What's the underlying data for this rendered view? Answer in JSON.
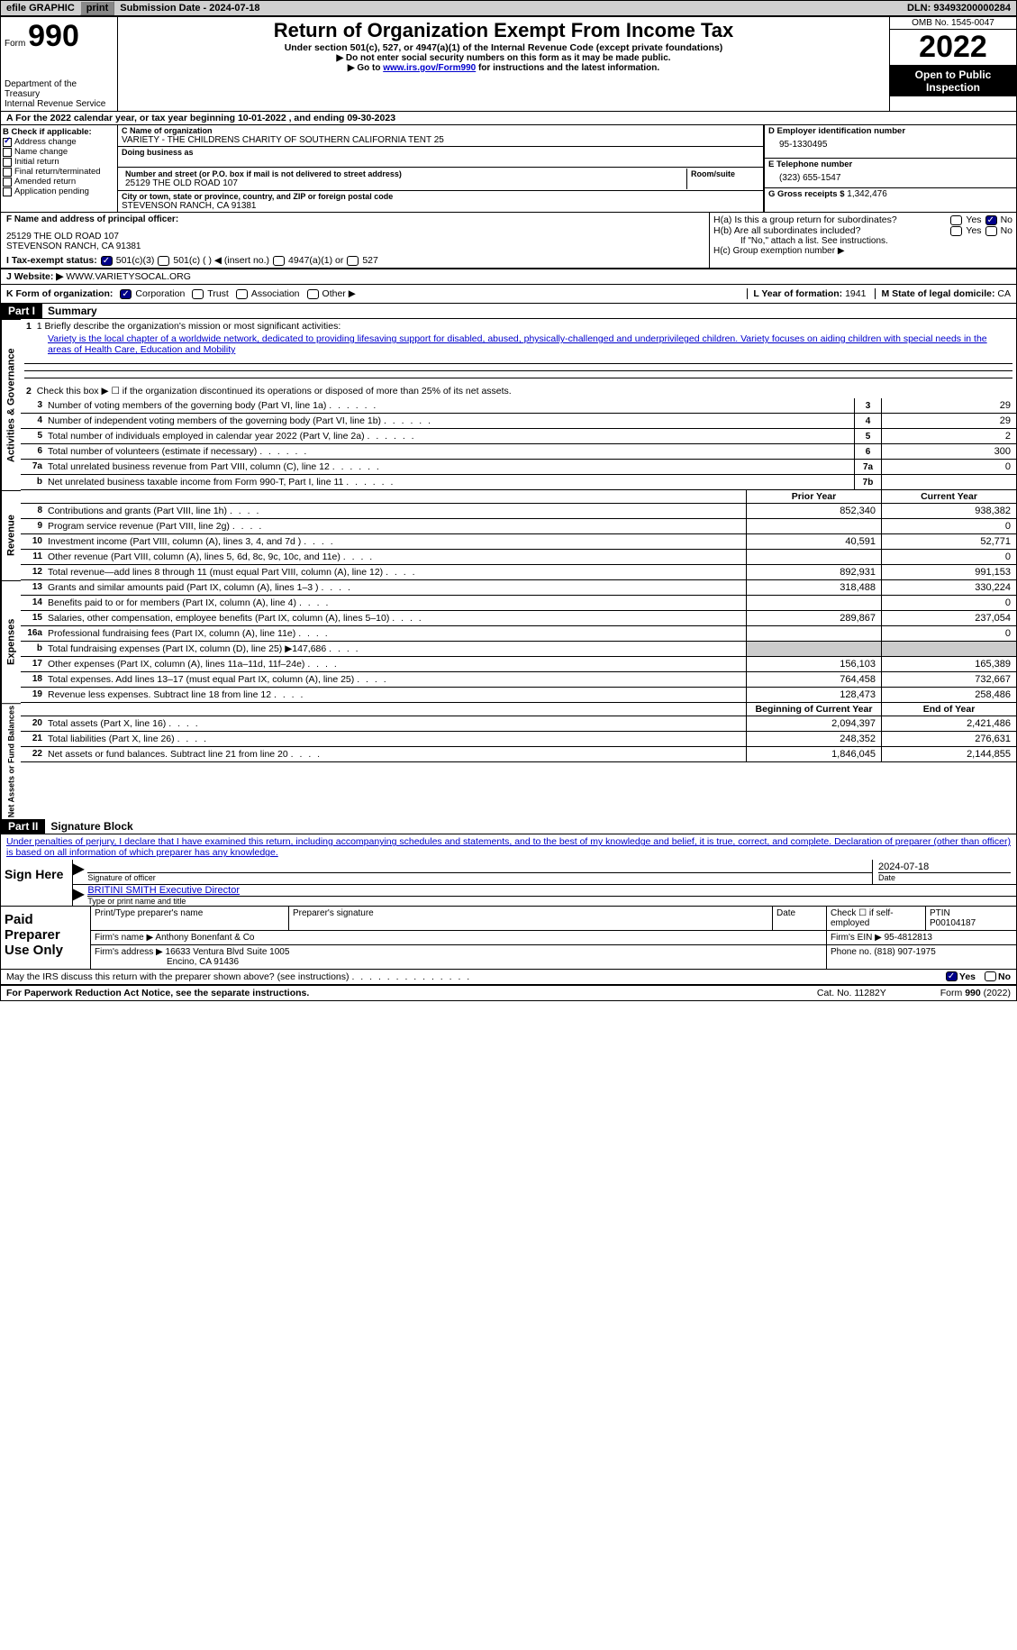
{
  "topbar": {
    "efile_label": "efile GRAPHIC",
    "print_btn": "print",
    "submission_label": "Submission Date - 2024-07-18",
    "dln_label": "DLN: 93493200000284"
  },
  "header": {
    "form_prefix": "Form",
    "form_number": "990",
    "title": "Return of Organization Exempt From Income Tax",
    "subtitle": "Under section 501(c), 527, or 4947(a)(1) of the Internal Revenue Code (except private foundations)",
    "note1": "▶ Do not enter social security numbers on this form as it may be made public.",
    "note2_pre": "▶ Go to ",
    "note2_link": "www.irs.gov/Form990",
    "note2_post": " for instructions and the latest information.",
    "dept": "Department of the Treasury",
    "irs": "Internal Revenue Service",
    "omb": "OMB No. 1545-0047",
    "year": "2022",
    "inspection": "Open to Public Inspection"
  },
  "rowA": "A For the 2022 calendar year, or tax year beginning 10-01-2022    , and ending 09-30-2023",
  "colB": {
    "header": "B Check if applicable:",
    "items": [
      "Address change",
      "Name change",
      "Initial return",
      "Final return/terminated",
      "Amended return",
      "Application pending"
    ],
    "checked_idx": 0
  },
  "colC": {
    "name_label": "C Name of organization",
    "name": "VARIETY - THE CHILDRENS CHARITY OF SOUTHERN CALIFORNIA TENT 25",
    "dba_label": "Doing business as",
    "addr_label": "Number and street (or P.O. box if mail is not delivered to street address)",
    "room_label": "Room/suite",
    "addr": "25129 THE OLD ROAD 107",
    "city_label": "City or town, state or province, country, and ZIP or foreign postal code",
    "city": "STEVENSON RANCH, CA  91381"
  },
  "colD": {
    "ein_label": "D Employer identification number",
    "ein": "95-1330495",
    "phone_label": "E Telephone number",
    "phone": "(323) 655-1547",
    "gross_label": "G Gross receipts $",
    "gross": "1,342,476"
  },
  "rowF": {
    "label": "F Name and address of principal officer:",
    "addr1": "25129 THE OLD ROAD 107",
    "addr2": "STEVENSON RANCH, CA  91381"
  },
  "rowH": {
    "ha_label": "H(a)  Is this a group return for subordinates?",
    "hb_label": "H(b)  Are all subordinates included?",
    "hb_note": "If \"No,\" attach a list. See instructions.",
    "hc_label": "H(c)  Group exemption number ▶",
    "yes": "Yes",
    "no": "No"
  },
  "rowI": {
    "label": "I    Tax-exempt status:",
    "opt1": "501(c)(3)",
    "opt2": "501(c) (  ) ◀ (insert no.)",
    "opt3": "4947(a)(1) or",
    "opt4": "527"
  },
  "rowJ": {
    "label": "J   Website: ▶",
    "value": "WWW.VARIETYSOCAL.ORG"
  },
  "rowK": {
    "label": "K Form of organization:",
    "opts": [
      "Corporation",
      "Trust",
      "Association",
      "Other ▶"
    ],
    "checked_idx": 0,
    "L_label": "L Year of formation:",
    "L_val": "1941",
    "M_label": "M State of legal domicile:",
    "M_val": "CA"
  },
  "partI": {
    "header": "Part I",
    "title": "Summary",
    "line1_label": "1  Briefly describe the organization's mission or most significant activities:",
    "mission": "Variety is the local chapter of a worldwide network, dedicated to providing lifesaving support for disabled, abused, physically-challenged and underprivileged children. Variety focuses on aiding children with special needs in the areas of Health Care, Education and Mobility",
    "line2": "Check this box ▶ ☐  if the organization discontinued its operations or disposed of more than 25% of its net assets.",
    "sections": {
      "gov": "Activities & Governance",
      "rev": "Revenue",
      "exp": "Expenses",
      "net": "Net Assets or Fund Balances"
    },
    "prior_year": "Prior Year",
    "current_year": "Current Year",
    "begin_year": "Beginning of Current Year",
    "end_year": "End of Year",
    "lines_gov": [
      {
        "n": "3",
        "d": "Number of voting members of the governing body (Part VI, line 1a)",
        "box": "3",
        "v": "29"
      },
      {
        "n": "4",
        "d": "Number of independent voting members of the governing body (Part VI, line 1b)",
        "box": "4",
        "v": "29"
      },
      {
        "n": "5",
        "d": "Total number of individuals employed in calendar year 2022 (Part V, line 2a)",
        "box": "5",
        "v": "2"
      },
      {
        "n": "6",
        "d": "Total number of volunteers (estimate if necessary)",
        "box": "6",
        "v": "300"
      },
      {
        "n": "7a",
        "d": "Total unrelated business revenue from Part VIII, column (C), line 12",
        "box": "7a",
        "v": "0"
      },
      {
        "n": "b",
        "d": "Net unrelated business taxable income from Form 990-T, Part I, line 11",
        "box": "7b",
        "v": ""
      }
    ],
    "lines_rev": [
      {
        "n": "8",
        "d": "Contributions and grants (Part VIII, line 1h)",
        "p": "852,340",
        "c": "938,382"
      },
      {
        "n": "9",
        "d": "Program service revenue (Part VIII, line 2g)",
        "p": "",
        "c": "0"
      },
      {
        "n": "10",
        "d": "Investment income (Part VIII, column (A), lines 3, 4, and 7d )",
        "p": "40,591",
        "c": "52,771"
      },
      {
        "n": "11",
        "d": "Other revenue (Part VIII, column (A), lines 5, 6d, 8c, 9c, 10c, and 11e)",
        "p": "",
        "c": "0"
      },
      {
        "n": "12",
        "d": "Total revenue—add lines 8 through 11 (must equal Part VIII, column (A), line 12)",
        "p": "892,931",
        "c": "991,153"
      }
    ],
    "lines_exp": [
      {
        "n": "13",
        "d": "Grants and similar amounts paid (Part IX, column (A), lines 1–3 )",
        "p": "318,488",
        "c": "330,224"
      },
      {
        "n": "14",
        "d": "Benefits paid to or for members (Part IX, column (A), line 4)",
        "p": "",
        "c": "0"
      },
      {
        "n": "15",
        "d": "Salaries, other compensation, employee benefits (Part IX, column (A), lines 5–10)",
        "p": "289,867",
        "c": "237,054"
      },
      {
        "n": "16a",
        "d": "Professional fundraising fees (Part IX, column (A), line 11e)",
        "p": "",
        "c": "0"
      },
      {
        "n": "b",
        "d": "Total fundraising expenses (Part IX, column (D), line 25) ▶147,686",
        "p": "shade",
        "c": "shade"
      },
      {
        "n": "17",
        "d": "Other expenses (Part IX, column (A), lines 11a–11d, 11f–24e)",
        "p": "156,103",
        "c": "165,389"
      },
      {
        "n": "18",
        "d": "Total expenses. Add lines 13–17 (must equal Part IX, column (A), line 25)",
        "p": "764,458",
        "c": "732,667"
      },
      {
        "n": "19",
        "d": "Revenue less expenses. Subtract line 18 from line 12",
        "p": "128,473",
        "c": "258,486"
      }
    ],
    "lines_net": [
      {
        "n": "20",
        "d": "Total assets (Part X, line 16)",
        "p": "2,094,397",
        "c": "2,421,486"
      },
      {
        "n": "21",
        "d": "Total liabilities (Part X, line 26)",
        "p": "248,352",
        "c": "276,631"
      },
      {
        "n": "22",
        "d": "Net assets or fund balances. Subtract line 21 from line 20",
        "p": "1,846,045",
        "c": "2,144,855"
      }
    ]
  },
  "partII": {
    "header": "Part II",
    "title": "Signature Block",
    "declaration": "Under penalties of perjury, I declare that I have examined this return, including accompanying schedules and statements, and to the best of my knowledge and belief, it is true, correct, and complete. Declaration of preparer (other than officer) is based on all information of which preparer has any knowledge.",
    "sign_here": "Sign Here",
    "sig_officer": "Signature of officer",
    "sig_date": "2024-07-18",
    "date_label": "Date",
    "officer_name": "BRITINI SMITH  Executive Director",
    "type_label": "Type or print name and title",
    "paid_prep": "Paid Preparer Use Only",
    "pp_name_label": "Print/Type preparer's name",
    "pp_sig_label": "Preparer's signature",
    "pp_date_label": "Date",
    "pp_check_label": "Check ☐ if self-employed",
    "pp_ptin_label": "PTIN",
    "pp_ptin": "P00104187",
    "firm_name_label": "Firm's name     ▶",
    "firm_name": "Anthony Bonenfant & Co",
    "firm_ein_label": "Firm's EIN ▶",
    "firm_ein": "95-4812813",
    "firm_addr_label": "Firm's address ▶",
    "firm_addr1": "16633 Ventura Blvd Suite 1005",
    "firm_addr2": "Encino, CA  91436",
    "phone_label": "Phone no.",
    "phone": "(818) 907-1975",
    "discuss_q": "May the IRS discuss this return with the preparer shown above? (see instructions)",
    "paperwork": "For Paperwork Reduction Act Notice, see the separate instructions.",
    "cat": "Cat. No. 11282Y",
    "form_ref": "Form 990 (2022)"
  }
}
